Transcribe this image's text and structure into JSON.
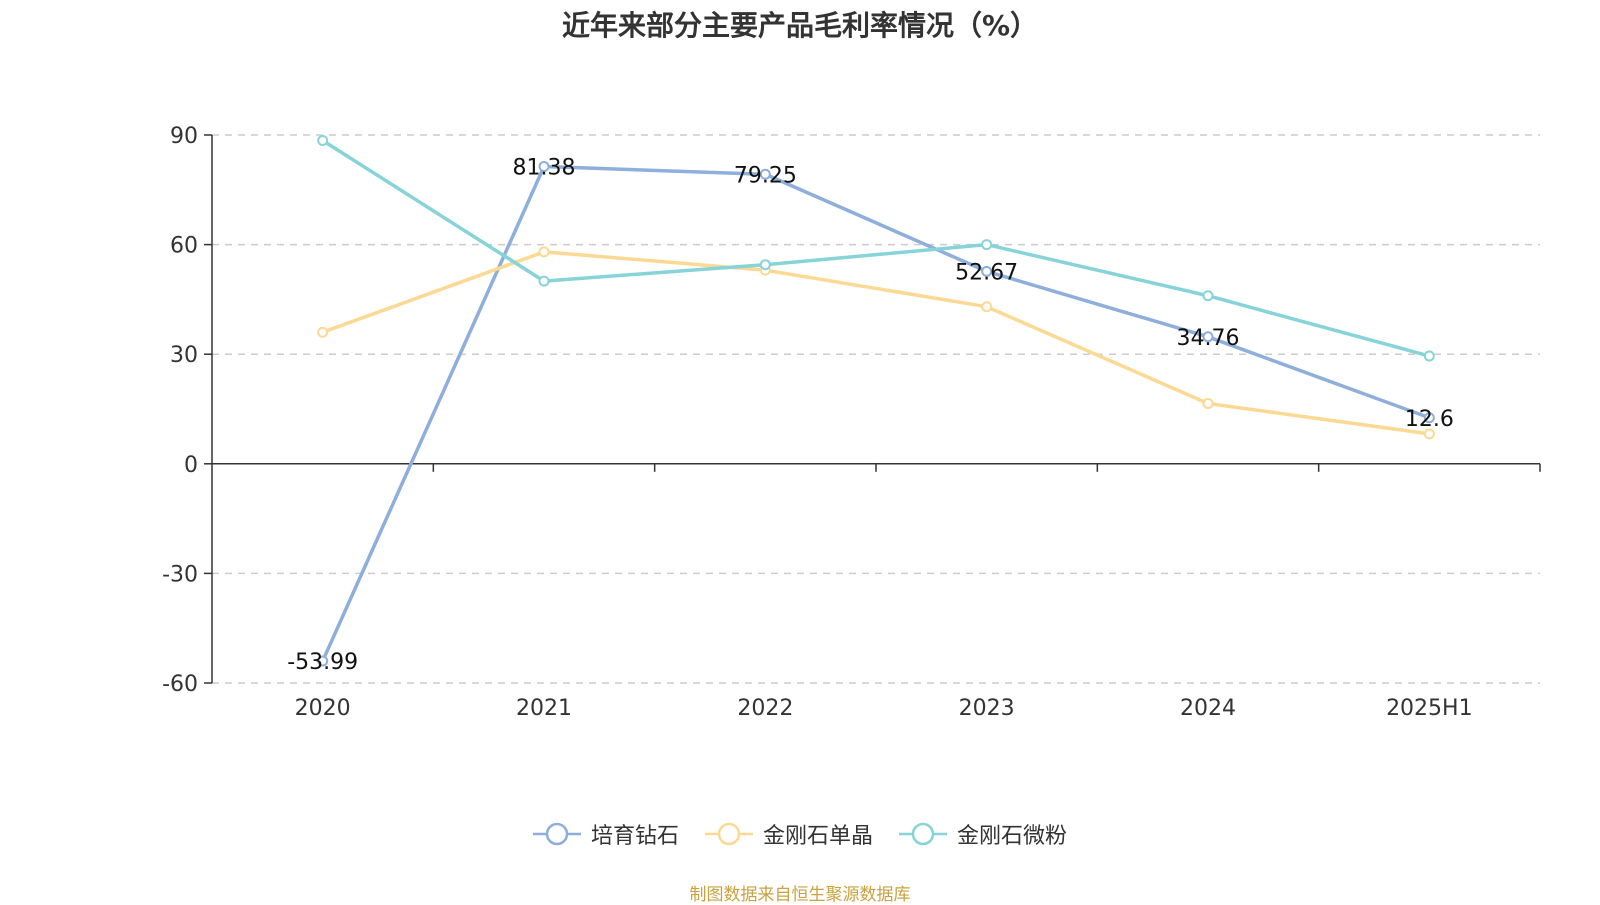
{
  "title": "近年来部分主要产品毛利率情况（%）",
  "source_note": "制图数据来自恒生聚源数据库",
  "chart_data": {
    "type": "line",
    "categories": [
      "2020",
      "2021",
      "2022",
      "2023",
      "2024",
      "2025H1"
    ],
    "ylim": [
      -60,
      90
    ],
    "yticks": [
      90,
      60,
      30,
      0,
      -30,
      -60
    ],
    "grid": true,
    "legend_position": "bottom",
    "series": [
      {
        "name": "培育钻石",
        "color": "#8eaedb",
        "values": [
          -53.99,
          81.38,
          79.25,
          52.67,
          34.76,
          12.6
        ],
        "labels": [
          "-53.99",
          "81.38",
          "79.25",
          "52.67",
          "34.76",
          "12.6"
        ]
      },
      {
        "name": "金刚石单晶",
        "color": "#fcd993",
        "values": [
          36,
          58,
          53,
          43,
          16.5,
          8.2
        ]
      },
      {
        "name": "金刚石微粉",
        "color": "#86d3d8",
        "values": [
          88.5,
          50,
          54.5,
          60,
          46,
          29.5
        ]
      }
    ]
  }
}
